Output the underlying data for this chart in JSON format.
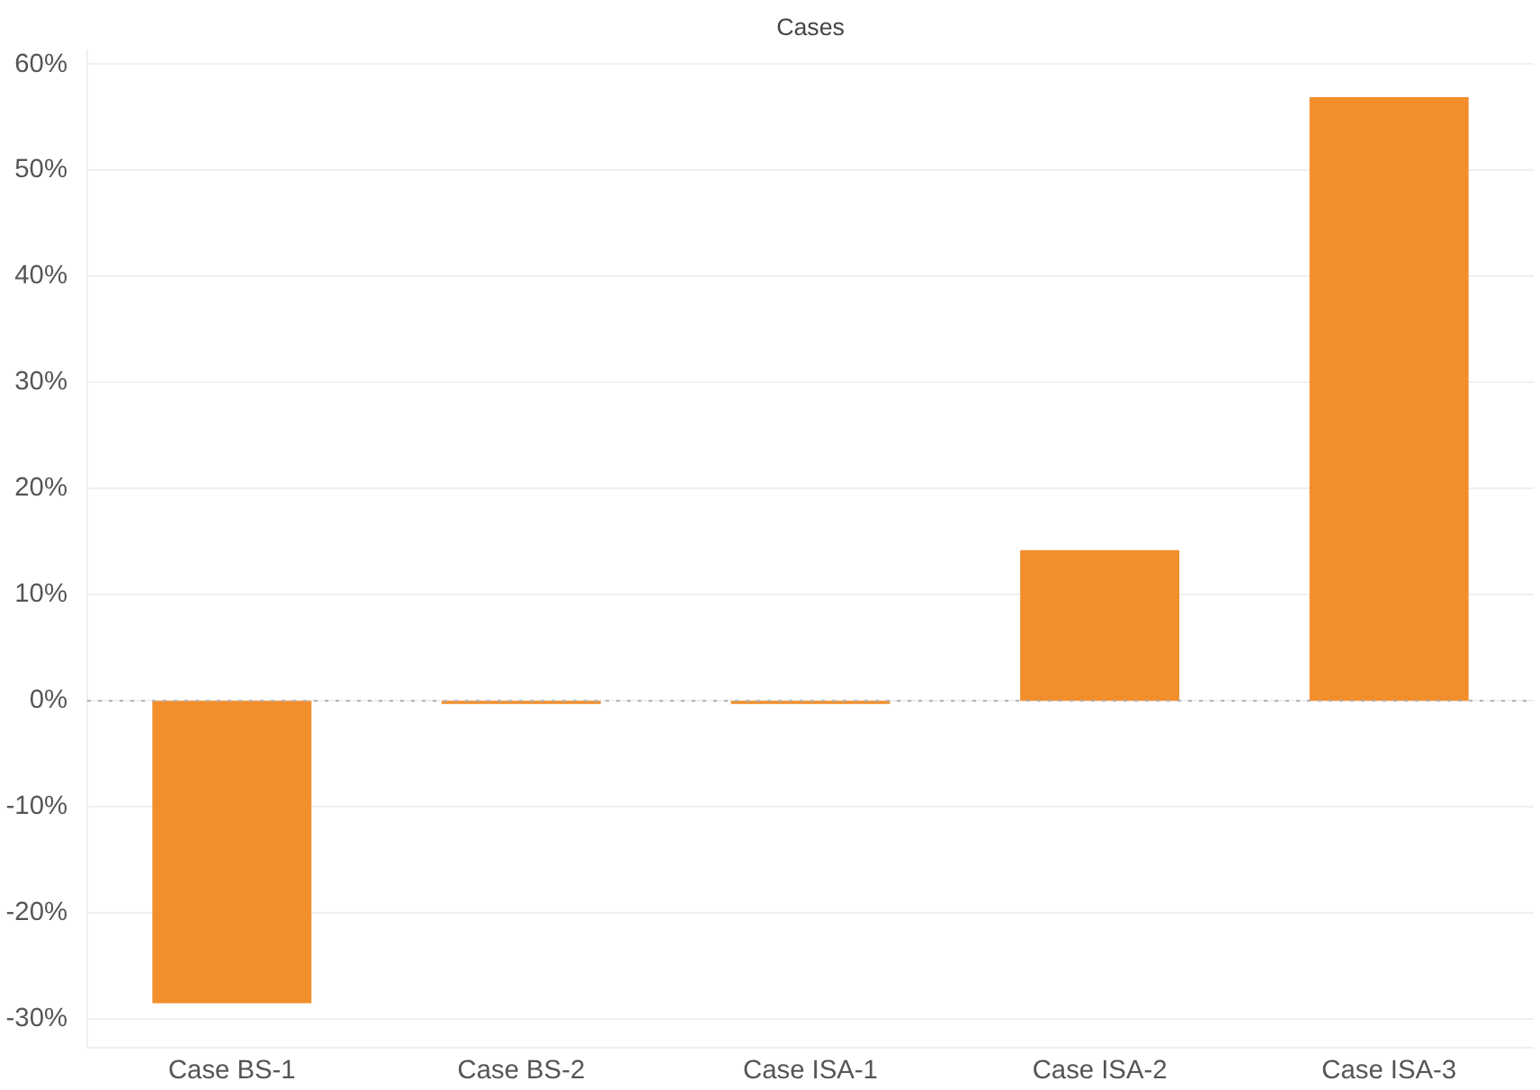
{
  "chart_data": {
    "type": "bar",
    "title": "Cases",
    "categories": [
      "Case BS-1",
      "Case BS-2",
      "Case ISA-1",
      "Case ISA-2",
      "Case ISA-3"
    ],
    "values": [
      -28.5,
      -0.3,
      -0.3,
      14.2,
      56.9
    ],
    "color": "#f28e2c",
    "ylim": [
      -32.7,
      61.4
    ],
    "yticks": [
      {
        "value": -30,
        "label": "-30%"
      },
      {
        "value": -20,
        "label": "-20%"
      },
      {
        "value": -10,
        "label": "-10%"
      },
      {
        "value": 0,
        "label": "0%"
      },
      {
        "value": 10,
        "label": "10%"
      },
      {
        "value": 20,
        "label": "20%"
      },
      {
        "value": 30,
        "label": "30%"
      },
      {
        "value": 40,
        "label": "40%"
      },
      {
        "value": 50,
        "label": "50%"
      },
      {
        "value": 60,
        "label": "60%"
      }
    ],
    "grid": "y",
    "ref_lines": [
      {
        "axis": "y",
        "value": 0,
        "color": "#b0b0b0",
        "line_style": "dotted"
      }
    ]
  }
}
